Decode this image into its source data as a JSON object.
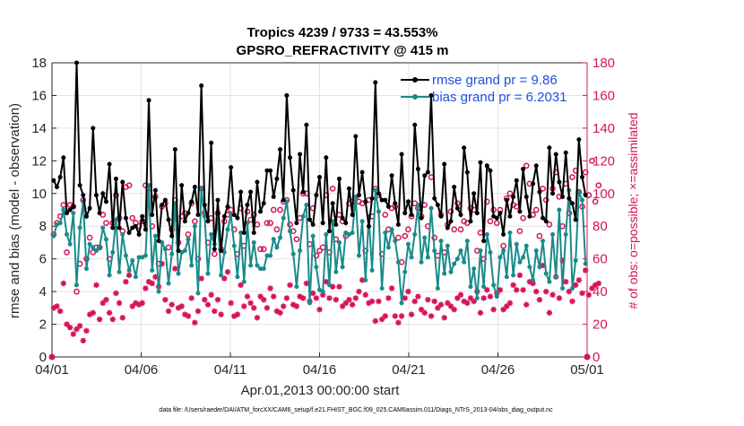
{
  "chart_data": {
    "type": "line",
    "title": "Tropics 4239 / 9733 = 43.553%",
    "subtitle": "GPSRO_REFRACTIVITY @ 415 m",
    "xlabel": "Apr.01,2013 00:00:00 start",
    "ylabel": "rmse and bias (model - observation)",
    "ylabel_right": "# of obs: o=possible; ×=assimilated",
    "footer": "data file: /Users/raeder/DAI/ATM_forcXX/CAM6_setup/f.e21.FHIST_BGC.f09_025.CAM6assim.011/Diags_NTrS_2013-04/obs_diag_output.nc",
    "x_ticks": [
      "04/01",
      "04/06",
      "04/11",
      "04/16",
      "04/21",
      "04/26",
      "05/01"
    ],
    "y_ticks": [
      "0",
      "2",
      "4",
      "6",
      "8",
      "10",
      "12",
      "14",
      "16",
      "18"
    ],
    "y2_ticks": [
      "0",
      "20",
      "40",
      "60",
      "80",
      "100",
      "120",
      "140",
      "160",
      "180"
    ],
    "xlim_days": [
      0,
      30
    ],
    "ylim": [
      0,
      18
    ],
    "y2lim": [
      0,
      180
    ],
    "legend": [
      "rmse grand pr = 9.86",
      "bias grand pr = 6.2031"
    ],
    "legend_position": "top-right",
    "colors": {
      "rmse": "#000000",
      "bias": "#1a8a8a",
      "obs": "#d4145a",
      "legend_text": "#1f4fe0",
      "grid": "#e3e3e3"
    },
    "rmse": [
      10.8,
      10.4,
      11.0,
      12.2,
      8.8,
      9.0,
      9.2,
      18.0,
      10.5,
      9.9,
      8.6,
      9.1,
      14.0,
      9.9,
      8.8,
      10.0,
      9.5,
      11.8,
      7.9,
      10.9,
      7.9,
      10.7,
      8.5,
      7.6,
      7.9,
      8.0,
      7.5,
      8.6,
      7.8,
      15.7,
      8.7,
      10.2,
      7.1,
      9.3,
      9.6,
      8.4,
      7.4,
      12.7,
      6.5,
      10.5,
      8.3,
      8.8,
      9.5,
      10.4,
      8.7,
      16.6,
      9.3,
      8.3,
      13.1,
      6.6,
      9.6,
      6.5,
      8.6,
      9.2,
      11.6,
      8.7,
      8.5,
      10.1,
      7.6,
      9.3,
      10.1,
      7.6,
      10.7,
      8.9,
      9.4,
      11.4,
      11.4,
      9.8,
      10.9,
      12.7,
      9.6,
      16.0,
      12.2,
      10.2,
      8.2,
      12.4,
      10.1,
      14.2,
      8.4,
      8.1,
      9.9,
      11.0,
      8.2,
      12.2,
      7.7,
      9.4,
      8.1,
      10.9,
      8.5,
      8.2,
      10.3,
      8.7,
      13.5,
      9.9,
      11.3,
      9.5,
      8.0,
      9.7,
      16.8,
      10.0,
      9.6,
      9.6,
      9.2,
      11.1,
      9.4,
      8.1,
      12.4,
      8.8,
      9.5,
      8.7,
      14.2,
      11.5,
      8.5,
      11.1,
      11.3,
      16.0,
      9.7,
      9.3,
      8.6,
      11.8,
      7.9,
      8.3,
      10.4,
      9.1,
      8.7,
      12.8,
      11.3,
      8.3,
      10.0,
      8.8,
      11.9,
      7.1,
      11.7,
      11.4,
      8.6,
      8.5,
      8.8,
      7.5,
      9.6,
      8.6,
      9.8,
      10.8,
      8.9,
      11.5,
      9.8,
      8.6,
      10.6,
      11.7,
      10.1,
      8.5,
      8.3,
      12.8,
      10.0,
      12.4,
      10.7,
      9.8,
      12.5,
      9.7,
      9.4,
      8.4,
      13.3,
      11.0,
      9.9
    ],
    "bias": [
      7.4,
      8.1,
      8.2,
      9.0,
      7.5,
      6.9,
      8.8,
      4.4,
      7.9,
      9.5,
      5.4,
      6.9,
      6.7,
      6.5,
      6.7,
      7.9,
      7.2,
      5.0,
      6.4,
      8.4,
      5.2,
      7.5,
      6.2,
      5.3,
      5.9,
      4.9,
      6.1,
      6.1,
      6.2,
      10.5,
      5.3,
      7.4,
      4.0,
      7.0,
      6.6,
      4.5,
      6.3,
      9.4,
      5.1,
      6.4,
      6.5,
      7.2,
      5.6,
      8.0,
      3.9,
      10.3,
      8.6,
      5.1,
      7.5,
      6.9,
      8.4,
      5.0,
      6.4,
      7.8,
      8.7,
      6.8,
      4.9,
      7.6,
      4.6,
      8.2,
      5.6,
      7.0,
      5.6,
      5.4,
      5.4,
      6.2,
      6.2,
      7.2,
      6.7,
      7.3,
      8.5,
      9.5,
      7.7,
      6.3,
      4.3,
      6.5,
      8.6,
      9.3,
      3.3,
      7.4,
      5.5,
      4.1,
      4.0,
      7.5,
      4.4,
      8.3,
      5.2,
      7.0,
      5.5,
      7.6,
      7.5,
      7.6,
      9.8,
      6.2,
      8.3,
      4.7,
      8.6,
      5.3,
      10.2,
      8.9,
      4.2,
      7.6,
      6.7,
      7.8,
      7.1,
      5.8,
      3.3,
      5.2,
      6.9,
      6.1,
      7.5,
      9.3,
      5.8,
      7.3,
      6.1,
      9.1,
      6.5,
      4.2,
      7.1,
      5.1,
      6.8,
      5.2,
      5.7,
      6.0,
      6.5,
      5.8,
      7.1,
      4.3,
      5.4,
      3.6,
      6.5,
      4.3,
      7.5,
      6.4,
      4.4,
      3.7,
      6.1,
      6.5,
      4.9,
      7.6,
      5.0,
      6.9,
      5.8,
      6.1,
      6.8,
      5.5,
      4.7,
      6.5,
      5.5,
      7.1,
      5.1,
      4.6,
      7.5,
      4.9,
      9.0,
      4.2,
      7.5,
      10.2,
      4.2,
      5.9,
      10.1,
      9.6,
      5.7
    ],
    "obs_possible": [
      75,
      82,
      86,
      93,
      64,
      93,
      92,
      40,
      57,
      96,
      60,
      73,
      64,
      67,
      67,
      87,
      82,
      60,
      82,
      99,
      85,
      77,
      104,
      105,
      85,
      82,
      80,
      83,
      105,
      103,
      80,
      98,
      57,
      92,
      94,
      67,
      78,
      96,
      70,
      86,
      88,
      75,
      94,
      83,
      60,
      103,
      88,
      70,
      85,
      63,
      88,
      66,
      83,
      87,
      90,
      78,
      63,
      91,
      68,
      89,
      84,
      87,
      81,
      66,
      66,
      82,
      82,
      90,
      78,
      90,
      95,
      96,
      81,
      77,
      72,
      85,
      100,
      100,
      69,
      91,
      62,
      65,
      67,
      99,
      64,
      103,
      72,
      87,
      83,
      74,
      94,
      95,
      97,
      95,
      94,
      65,
      96,
      86,
      103,
      99,
      63,
      87,
      78,
      91,
      92,
      73,
      58,
      74,
      78,
      86,
      94,
      91,
      86,
      93,
      80,
      110,
      73,
      62,
      87,
      64,
      81,
      89,
      78,
      94,
      78,
      83,
      82,
      91,
      90,
      65,
      76,
      60,
      95,
      83,
      90,
      82,
      90,
      68,
      97,
      100,
      93,
      92,
      77,
      85,
      117,
      106,
      87,
      90,
      74,
      103,
      96,
      81,
      103,
      113,
      98,
      80,
      106,
      88,
      110,
      114,
      101,
      92,
      113,
      99,
      120,
      95,
      105
    ],
    "obs_assimilated": [
      30,
      31,
      28,
      45,
      20,
      18,
      14,
      17,
      19,
      10,
      16,
      26,
      27,
      44,
      23,
      33,
      35,
      27,
      23,
      39,
      33,
      24,
      46,
      50,
      31,
      33,
      32,
      33,
      42,
      46,
      45,
      49,
      43,
      57,
      35,
      28,
      32,
      54,
      30,
      31,
      26,
      25,
      36,
      21,
      28,
      48,
      35,
      32,
      38,
      28,
      35,
      26,
      48,
      52,
      33,
      25,
      26,
      44,
      31,
      37,
      33,
      30,
      24,
      37,
      35,
      30,
      42,
      37,
      28,
      27,
      31,
      36,
      44,
      32,
      31,
      37,
      36,
      45,
      34,
      39,
      36,
      29,
      38,
      46,
      36,
      43,
      35,
      43,
      31,
      33,
      35,
      32,
      36,
      40,
      47,
      38,
      33,
      34,
      22,
      34,
      23,
      25,
      36,
      42,
      25,
      21,
      25,
      36,
      40,
      26,
      34,
      37,
      29,
      27,
      35,
      25,
      34,
      30,
      32,
      24,
      33,
      31,
      29,
      36,
      38,
      34,
      33,
      36,
      34,
      40,
      27,
      36,
      41,
      37,
      29,
      39,
      41,
      29,
      31,
      33,
      44,
      41,
      50,
      41,
      32,
      46,
      45,
      40,
      35,
      56,
      40,
      27,
      38,
      49,
      36,
      59,
      46,
      40,
      34,
      44,
      47,
      39,
      53,
      38,
      42,
      44,
      45
    ]
  }
}
